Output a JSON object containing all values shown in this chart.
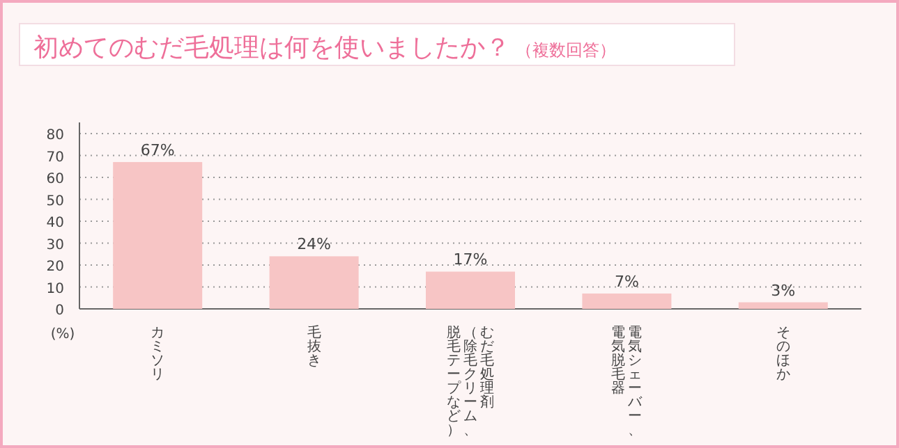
{
  "chart_data": {
    "type": "bar",
    "title": "初めてのむだ毛処理は何を使いましたか？",
    "subtitle": "（複数回答）",
    "ylabel": "(%)",
    "categories": [
      "カミソリ",
      "毛抜き",
      "むだ毛処理剤（除毛クリーム、脱毛テープなど）",
      "電気シェーバー、電気脱毛器",
      "そのほか"
    ],
    "values": [
      67,
      24,
      17,
      7,
      3
    ],
    "color": "#f7c5c5",
    "value_labels": [
      "67%",
      "24%",
      "17%",
      "7%",
      "3%"
    ],
    "ylim": [
      0,
      80
    ],
    "yticks": [
      0,
      10,
      20,
      30,
      40,
      50,
      60,
      70,
      80
    ],
    "grid": "y"
  }
}
